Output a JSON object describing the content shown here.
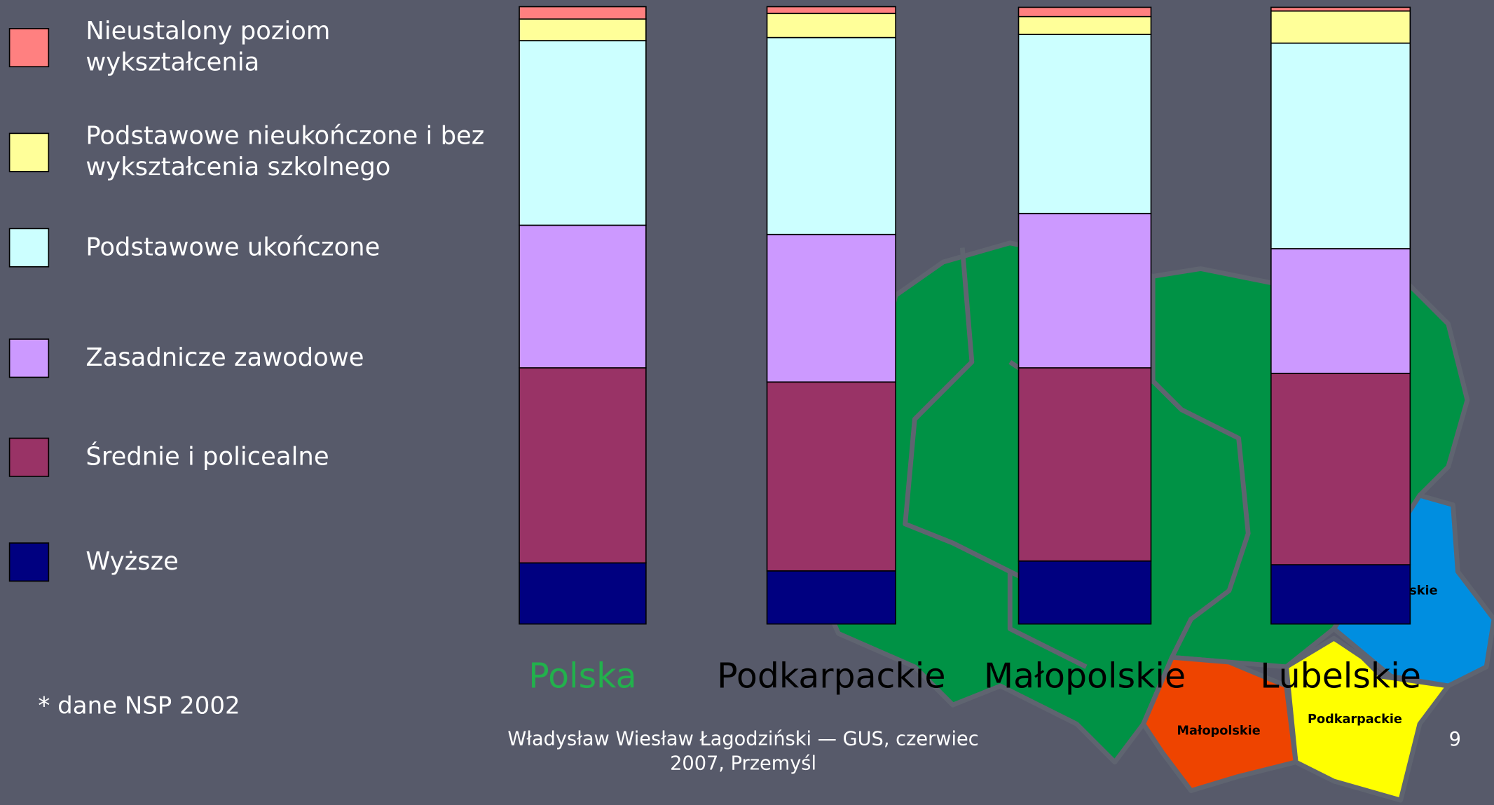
{
  "chart_data": {
    "type": "stacked_bar",
    "categories": [
      "Polska",
      "Podkarpackie",
      "Małopolskie",
      "Lubelskie"
    ],
    "category_label_colors": [
      "#22b14c",
      "#000000",
      "#000000",
      "#000000"
    ],
    "ylim": [
      0,
      100
    ],
    "series": [
      {
        "name": "Wyższe",
        "color": "#000080",
        "values": [
          9.9,
          8.6,
          10.2,
          9.6
        ]
      },
      {
        "name": "Średnie i policealne",
        "color": "#993366",
        "values": [
          31.6,
          30.6,
          31.3,
          31.0
        ]
      },
      {
        "name": "Zasadnicze zawodowe",
        "color": "#cc99ff",
        "values": [
          23.1,
          23.9,
          25.0,
          20.2
        ]
      },
      {
        "name": "Podstawowe ukończone",
        "color": "#ccffff",
        "values": [
          29.9,
          31.9,
          29.0,
          33.3
        ]
      },
      {
        "name": "Podstawowe nieukończone i bez wykształcenia szkolnego",
        "color": "#ffff99",
        "values": [
          3.5,
          3.9,
          2.9,
          5.2
        ]
      },
      {
        "name": "Nieustalony poziom wykształcenia",
        "color": "#ff8080",
        "values": [
          2.0,
          1.1,
          1.5,
          0.6
        ]
      }
    ],
    "note": "* dane NSP 2002"
  },
  "map": {
    "labels": [
      "Małopolskie",
      "Podkarpackie",
      "Lubelskie"
    ]
  },
  "footer": {
    "text": "Władysław Wiesław Łagodziński — GUS, czerwiec 2007, Przemyśl",
    "page": "9"
  }
}
